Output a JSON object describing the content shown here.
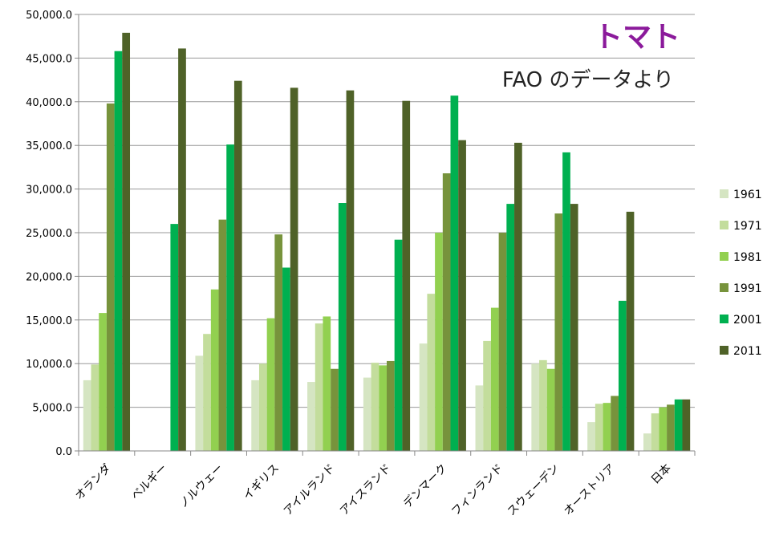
{
  "chart_data": {
    "type": "bar",
    "title": "トマト",
    "subtitle": "FAO のデータより",
    "title_color": "#8b1a9b",
    "xlabel": "",
    "ylabel": "",
    "ylim": [
      0,
      50000
    ],
    "y_ticks": [
      0,
      5000,
      10000,
      15000,
      20000,
      25000,
      30000,
      35000,
      40000,
      45000,
      50000
    ],
    "y_tick_labels": [
      "0.0",
      "5,000.0",
      "10,000.0",
      "15,000.0",
      "20,000.0",
      "25,000.0",
      "30,000.0",
      "35,000.0",
      "40,000.0",
      "45,000.0",
      "50,000.0"
    ],
    "grid": true,
    "legend_position": "right",
    "categories": [
      "オランダ",
      "ベルギー",
      "ノルウェー",
      "イギリス",
      "アイルランド",
      "アイスランド",
      "デンマーク",
      "フィンランド",
      "スウェーデン",
      "オーストリア",
      "日本"
    ],
    "series": [
      {
        "name": "1961",
        "color": "#d5e5c2",
        "values": [
          8100,
          null,
          10900,
          8100,
          7900,
          8400,
          12300,
          7500,
          10000,
          3300,
          2000
        ]
      },
      {
        "name": "1971",
        "color": "#c3dd9c",
        "values": [
          9900,
          null,
          13400,
          10000,
          14600,
          10100,
          18000,
          12600,
          10400,
          5400,
          4300
        ]
      },
      {
        "name": "1981",
        "color": "#92d050",
        "values": [
          15800,
          null,
          18500,
          15200,
          15400,
          9800,
          25000,
          16400,
          9400,
          5500,
          5000
        ]
      },
      {
        "name": "1991",
        "color": "#77933c",
        "values": [
          39800,
          null,
          26500,
          24800,
          9400,
          10300,
          31800,
          25000,
          27200,
          6300,
          5300
        ]
      },
      {
        "name": "2001",
        "color": "#00b050",
        "values": [
          45800,
          26000,
          35100,
          21000,
          28400,
          24200,
          40700,
          28300,
          34200,
          17200,
          5900
        ]
      },
      {
        "name": "2011",
        "color": "#4f6228",
        "values": [
          47900,
          46100,
          42400,
          41600,
          41300,
          40100,
          35600,
          35300,
          28300,
          27400,
          5900
        ]
      }
    ]
  }
}
